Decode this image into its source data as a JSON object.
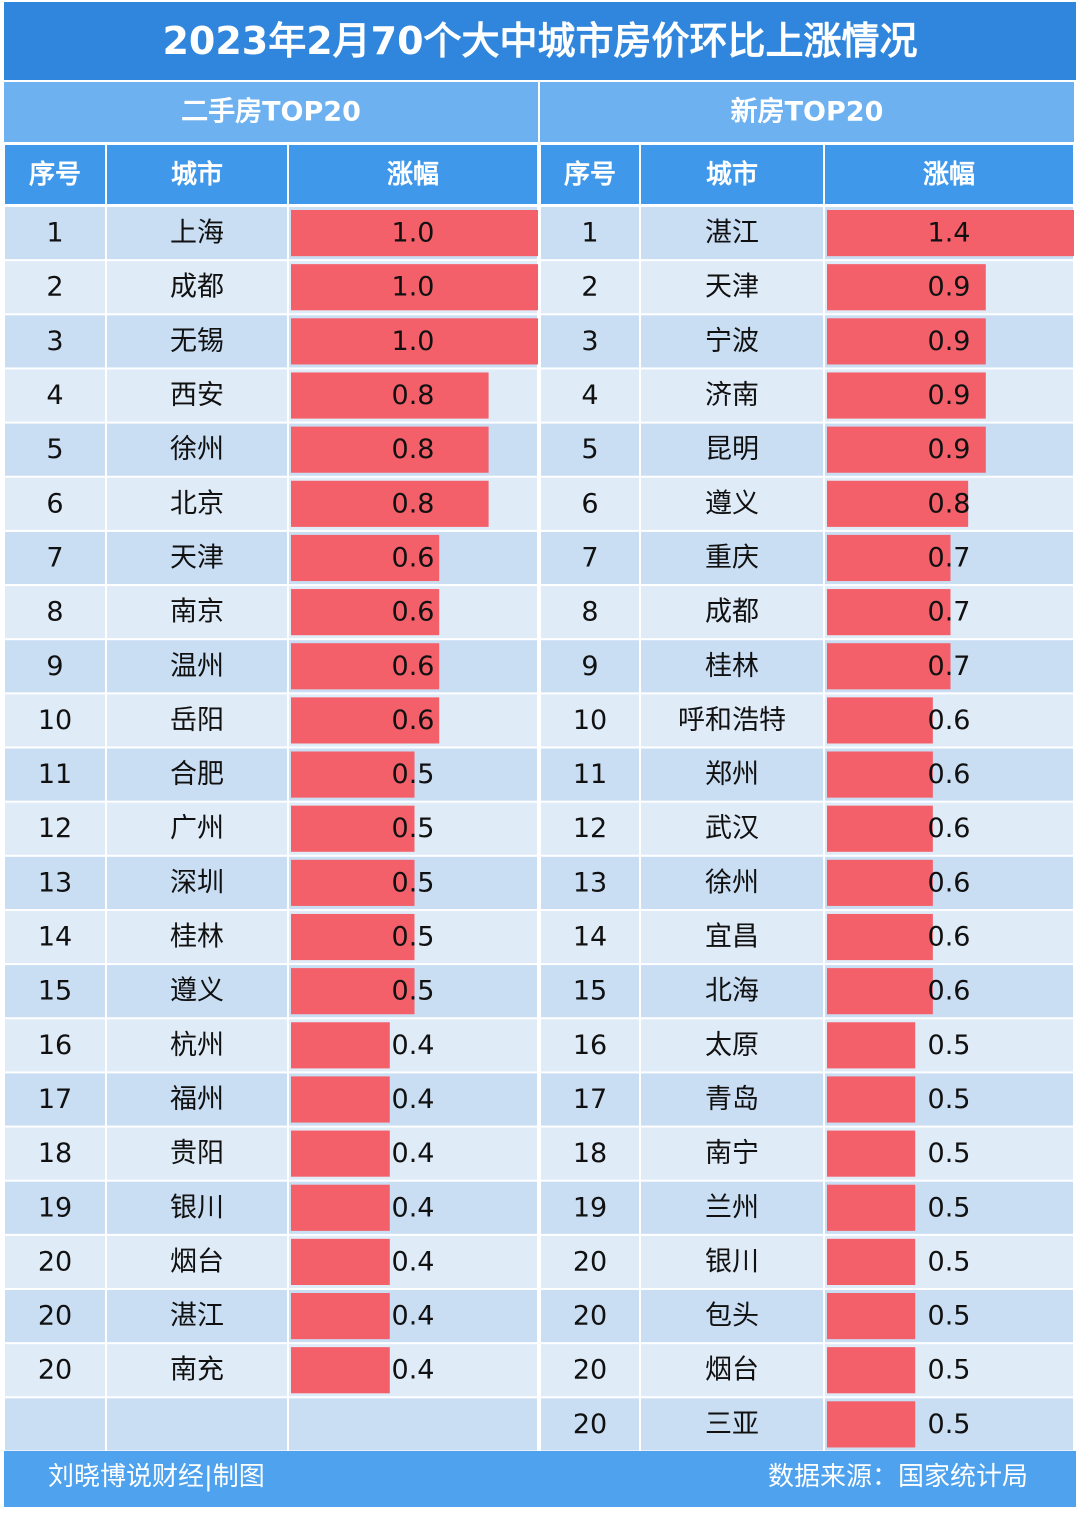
{
  "title": "2023年2月70个大中城市房价环比上涨情况",
  "tables": [
    {
      "heading": "二手房TOP20",
      "columns": [
        "序号",
        "城市",
        "涨幅"
      ],
      "ranks": [
        1,
        2,
        3,
        4,
        5,
        6,
        7,
        8,
        9,
        10,
        11,
        12,
        13,
        14,
        15,
        16,
        17,
        18,
        19,
        20,
        20,
        20
      ],
      "cities": [
        "上海",
        "成都",
        "无锡",
        "西安",
        "徐州",
        "北京",
        "天津",
        "南京",
        "温州",
        "岳阳",
        "合肥",
        "广州",
        "深圳",
        "桂林",
        "遵义",
        "杭州",
        "福州",
        "贵阳",
        "银川",
        "烟台",
        "湛江",
        "南充"
      ],
      "values": [
        1.0,
        1.0,
        1.0,
        0.8,
        0.8,
        0.8,
        0.6,
        0.6,
        0.6,
        0.6,
        0.5,
        0.5,
        0.5,
        0.5,
        0.5,
        0.4,
        0.4,
        0.4,
        0.4,
        0.4,
        0.4,
        0.4
      ],
      "value_labels": [
        "1.0",
        "1.0",
        "1.0",
        "0.8",
        "0.8",
        "0.8",
        "0.6",
        "0.6",
        "0.6",
        "0.6",
        "0.5",
        "0.5",
        "0.5",
        "0.5",
        "0.5",
        "0.4",
        "0.4",
        "0.4",
        "0.4",
        "0.4",
        "0.4",
        "0.4"
      ]
    },
    {
      "heading": "新房TOP20",
      "columns": [
        "序号",
        "城市",
        "涨幅"
      ],
      "ranks": [
        1,
        2,
        3,
        4,
        5,
        6,
        7,
        8,
        9,
        10,
        11,
        12,
        13,
        14,
        15,
        16,
        17,
        18,
        19,
        20,
        20,
        20,
        20
      ],
      "cities": [
        "湛江",
        "天津",
        "宁波",
        "济南",
        "昆明",
        "遵义",
        "重庆",
        "成都",
        "桂林",
        "呼和浩特",
        "郑州",
        "武汉",
        "徐州",
        "宜昌",
        "北海",
        "太原",
        "青岛",
        "南宁",
        "兰州",
        "银川",
        "包头",
        "烟台",
        "三亚"
      ],
      "values": [
        1.4,
        0.9,
        0.9,
        0.9,
        0.9,
        0.8,
        0.7,
        0.7,
        0.7,
        0.6,
        0.6,
        0.6,
        0.6,
        0.6,
        0.6,
        0.5,
        0.5,
        0.5,
        0.5,
        0.5,
        0.5,
        0.5,
        0.5
      ],
      "value_labels": [
        "1.4",
        "0.9",
        "0.9",
        "0.9",
        "0.9",
        "0.8",
        "0.7",
        "0.7",
        "0.7",
        "0.6",
        "0.6",
        "0.6",
        "0.6",
        "0.6",
        "0.6",
        "0.5",
        "0.5",
        "0.5",
        "0.5",
        "0.5",
        "0.5",
        "0.5",
        "0.5"
      ]
    }
  ],
  "footer": {
    "left": "刘晓博说财经|制图",
    "right": "数据来源：国家统计局"
  }
}
